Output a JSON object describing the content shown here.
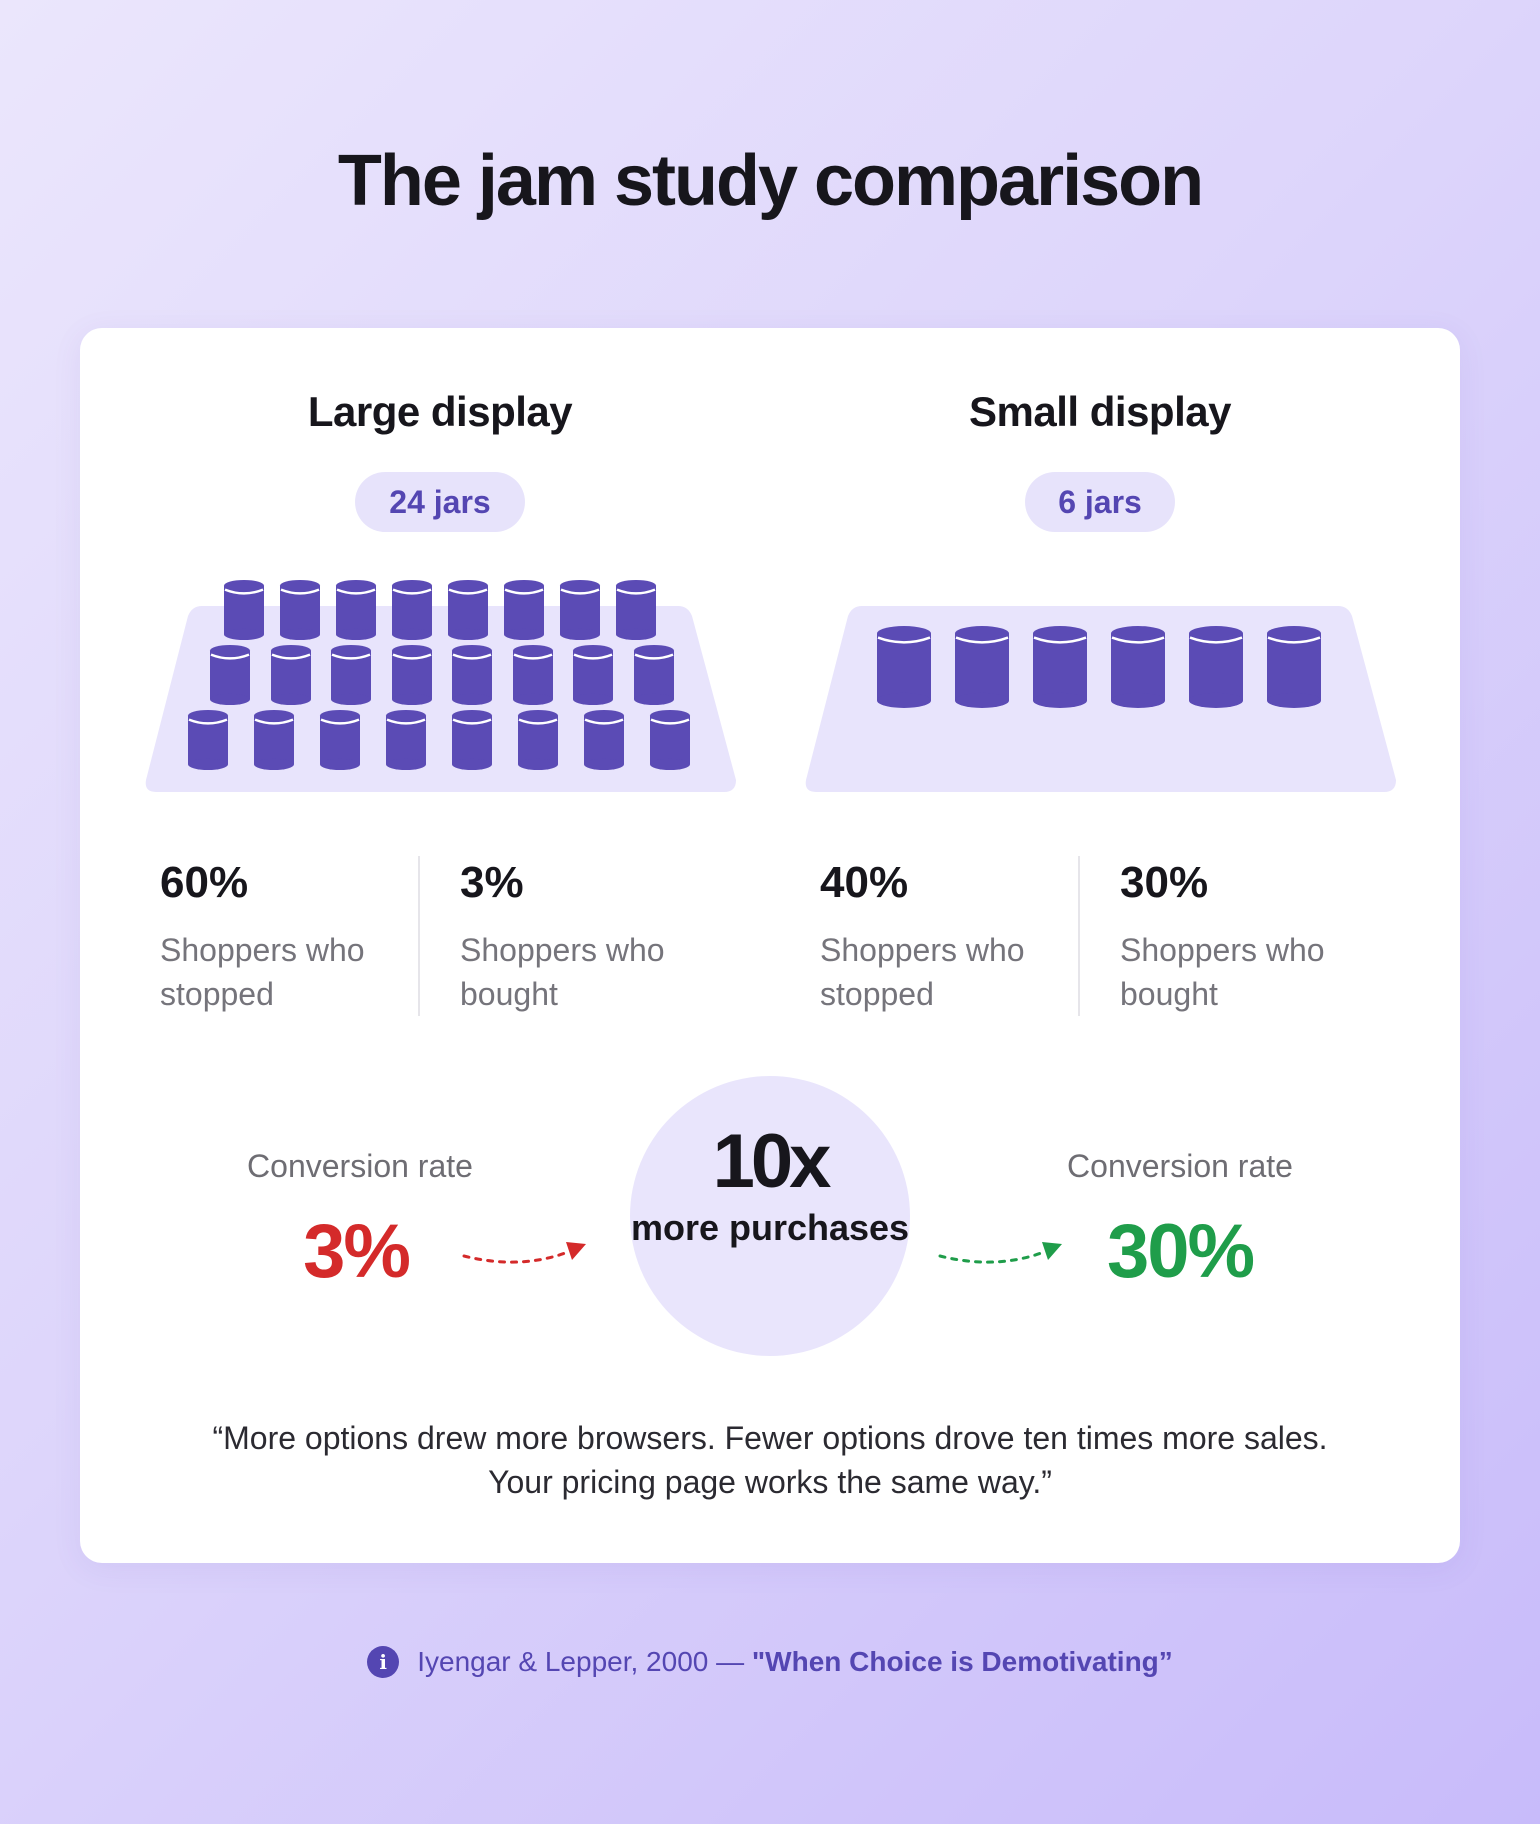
{
  "page": {
    "title": "The jam study comparison"
  },
  "large_display": {
    "heading": "Large display",
    "jar_count_label": "24 jars",
    "jar_count": 24,
    "stopped_pct": "60%",
    "stopped_label": "Shoppers who stopped",
    "bought_pct": "3%",
    "bought_label": "Shoppers who bought",
    "conversion_label": "Conversion rate",
    "conversion_value": "3%"
  },
  "small_display": {
    "heading": "Small display",
    "jar_count_label": "6 jars",
    "jar_count": 6,
    "stopped_pct": "40%",
    "stopped_label": "Shoppers who stopped",
    "bought_pct": "30%",
    "bought_label": "Shoppers who bought",
    "conversion_label": "Conversion rate",
    "conversion_value": "30%"
  },
  "highlight": {
    "multiplier": "10x",
    "caption": "more purchases"
  },
  "quote": "“More options drew more browsers. Fewer options drove ten times more sales. Your pricing page works the same way.”",
  "citation": {
    "icon": "info-icon",
    "author": "Iyengar & Lepper, 2000 —",
    "title": "\"When Choice is Demotivating”"
  },
  "colors": {
    "accent": "#5446b2",
    "jar": "#5b4bb5",
    "shelf": "#e8e4fc",
    "negative": "#d42a2a",
    "positive": "#1f9d4a"
  }
}
